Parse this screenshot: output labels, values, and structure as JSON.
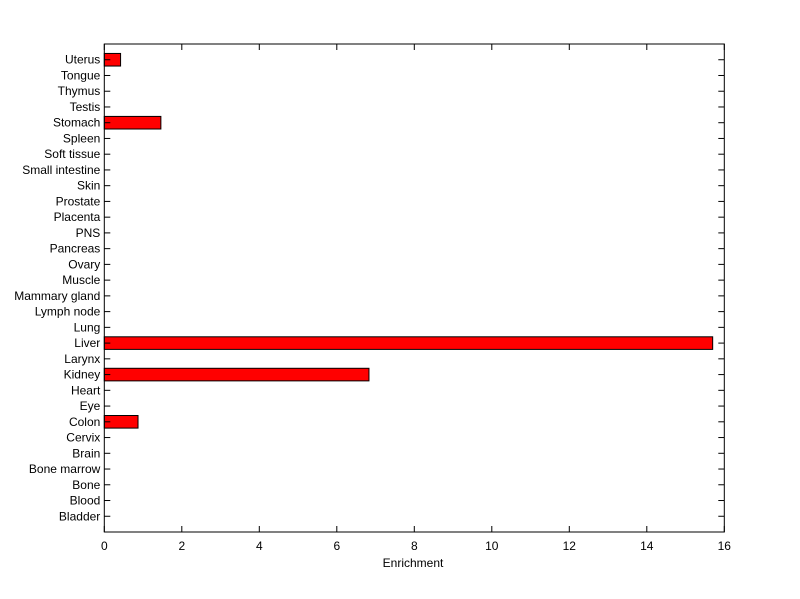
{
  "chart_data": {
    "type": "bar",
    "orientation": "horizontal",
    "title": "",
    "xlabel": "Enrichment",
    "ylabel": "",
    "xlim": [
      0,
      16
    ],
    "xticks": [
      0,
      2,
      4,
      6,
      8,
      10,
      12,
      14,
      16
    ],
    "grid": false,
    "bar_color": "#ff0000",
    "bar_edge_color": "#000000",
    "categories": [
      "Bladder",
      "Blood",
      "Bone",
      "Bone marrow",
      "Brain",
      "Cervix",
      "Colon",
      "Eye",
      "Heart",
      "Kidney",
      "Larynx",
      "Liver",
      "Lung",
      "Lymph node",
      "Mammary gland",
      "Muscle",
      "Ovary",
      "Pancreas",
      "PNS",
      "Placenta",
      "Prostate",
      "Skin",
      "Small intestine",
      "Soft tissue",
      "Spleen",
      "Stomach",
      "Testis",
      "Thymus",
      "Tongue",
      "Uterus"
    ],
    "values": [
      0,
      0,
      0,
      0,
      0,
      0,
      0.87,
      0,
      0,
      6.83,
      0,
      15.7,
      0,
      0,
      0,
      0,
      0,
      0,
      0,
      0,
      0,
      0,
      0,
      0,
      0,
      1.46,
      0,
      0,
      0,
      0.42
    ]
  }
}
